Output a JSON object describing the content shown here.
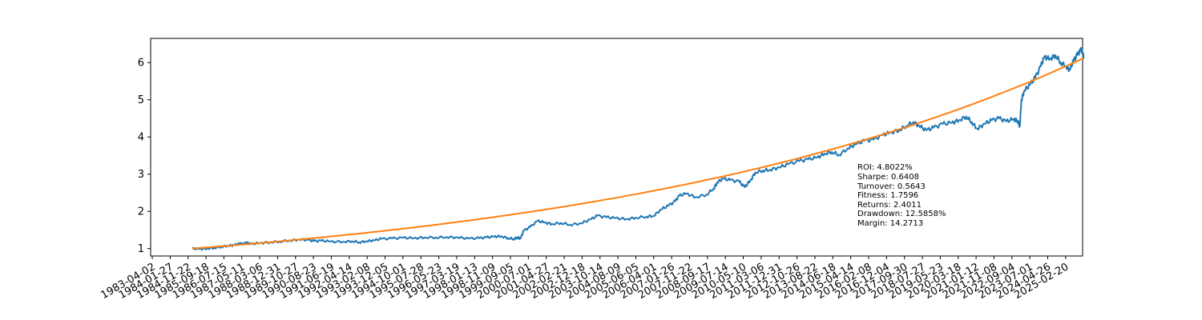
{
  "chart_data": {
    "type": "line",
    "title": "",
    "xlabel": "",
    "ylabel": "",
    "grid": false,
    "xlim": [
      "1983-04-02",
      "2025-12-01"
    ],
    "ylim": [
      0.8,
      6.65
    ],
    "yticks": [
      1,
      2,
      3,
      4,
      5,
      6
    ],
    "xticks": [
      "1983-04-02",
      "1984-01-27",
      "1984-11-22",
      "1985-09-18",
      "1986-07-15",
      "1987-05-11",
      "1988-03-06",
      "1988-12-31",
      "1989-10-27",
      "1990-08-23",
      "1991-06-19",
      "1992-04-14",
      "1993-02-08",
      "1993-12-05",
      "1994-10-01",
      "1995-07-28",
      "1996-05-23",
      "1997-03-19",
      "1998-01-13",
      "1998-11-09",
      "1999-09-05",
      "2000-07-01",
      "2001-04-27",
      "2002-02-21",
      "2002-12-18",
      "2003-10-14",
      "2004-08-09",
      "2005-06-05",
      "2006-04-01",
      "2007-01-26",
      "2007-11-22",
      "2008-09-17",
      "2009-07-14",
      "2010-05-10",
      "2011-03-06",
      "2011-12-31",
      "2012-10-26",
      "2013-08-22",
      "2014-06-18",
      "2015-04-14",
      "2016-02-08",
      "2016-12-04",
      "2017-09-30",
      "2018-07-27",
      "2019-05-23",
      "2020-03-18",
      "2021-01-12",
      "2021-11-08",
      "2022-09-04",
      "2023-07-01",
      "2024-04-26",
      "2025-02-20"
    ],
    "series": [
      {
        "color": "#1f77b4",
        "points": [
          [
            "1985-02-01",
            1.0
          ],
          [
            "1985-06-01",
            0.99
          ],
          [
            "1985-10-01",
            1.0
          ],
          [
            "1986-02-01",
            1.02
          ],
          [
            "1986-06-01",
            1.05
          ],
          [
            "1986-10-01",
            1.08
          ],
          [
            "1987-01-01",
            1.09
          ],
          [
            "1987-04-01",
            1.13
          ],
          [
            "1987-08-01",
            1.15
          ],
          [
            "1987-10-20",
            1.12
          ],
          [
            "1988-03-01",
            1.15
          ],
          [
            "1988-09-01",
            1.17
          ],
          [
            "1989-02-01",
            1.19
          ],
          [
            "1989-08-01",
            1.22
          ],
          [
            "1990-01-01",
            1.24
          ],
          [
            "1990-06-01",
            1.23
          ],
          [
            "1990-09-01",
            1.2
          ],
          [
            "1991-01-01",
            1.21
          ],
          [
            "1991-06-01",
            1.19
          ],
          [
            "1992-01-01",
            1.18
          ],
          [
            "1992-06-01",
            1.2
          ],
          [
            "1992-10-01",
            1.17
          ],
          [
            "1993-02-01",
            1.2
          ],
          [
            "1993-06-01",
            1.22
          ],
          [
            "1993-10-01",
            1.26
          ],
          [
            "1994-04-01",
            1.27
          ],
          [
            "1994-10-01",
            1.29
          ],
          [
            "1995-04-01",
            1.28
          ],
          [
            "1995-10-01",
            1.3
          ],
          [
            "1996-04-01",
            1.3
          ],
          [
            "1996-10-01",
            1.31
          ],
          [
            "1997-04-01",
            1.3
          ],
          [
            "1997-10-01",
            1.27
          ],
          [
            "1998-04-01",
            1.28
          ],
          [
            "1998-08-01",
            1.3
          ],
          [
            "1998-12-01",
            1.32
          ],
          [
            "1999-04-01",
            1.33
          ],
          [
            "1999-08-01",
            1.28
          ],
          [
            "1999-11-01",
            1.26
          ],
          [
            "2000-01-01",
            1.3
          ],
          [
            "2000-02-20",
            1.27
          ],
          [
            "2000-04-15",
            1.48
          ],
          [
            "2000-08-01",
            1.58
          ],
          [
            "2000-12-01",
            1.74
          ],
          [
            "2001-04-01",
            1.7
          ],
          [
            "2001-08-01",
            1.66
          ],
          [
            "2002-01-01",
            1.69
          ],
          [
            "2002-06-01",
            1.64
          ],
          [
            "2002-12-01",
            1.68
          ],
          [
            "2003-05-01",
            1.78
          ],
          [
            "2003-09-01",
            1.88
          ],
          [
            "2004-02-01",
            1.84
          ],
          [
            "2004-07-01",
            1.82
          ],
          [
            "2005-01-01",
            1.79
          ],
          [
            "2005-06-01",
            1.83
          ],
          [
            "2005-12-01",
            1.86
          ],
          [
            "2006-04-01",
            1.88
          ],
          [
            "2006-08-01",
            2.05
          ],
          [
            "2006-12-01",
            2.15
          ],
          [
            "2007-04-01",
            2.28
          ],
          [
            "2007-06-01",
            2.42
          ],
          [
            "2007-10-01",
            2.48
          ],
          [
            "2008-03-01",
            2.38
          ],
          [
            "2008-09-01",
            2.45
          ],
          [
            "2009-01-01",
            2.62
          ],
          [
            "2009-03-01",
            2.78
          ],
          [
            "2009-06-01",
            2.88
          ],
          [
            "2009-10-01",
            2.84
          ],
          [
            "2010-03-01",
            2.8
          ],
          [
            "2010-06-01",
            2.65
          ],
          [
            "2010-09-01",
            2.82
          ],
          [
            "2010-12-01",
            3.05
          ],
          [
            "2011-04-01",
            3.1
          ],
          [
            "2011-08-01",
            3.12
          ],
          [
            "2012-01-01",
            3.18
          ],
          [
            "2012-06-01",
            3.27
          ],
          [
            "2012-12-01",
            3.35
          ],
          [
            "2013-05-01",
            3.4
          ],
          [
            "2013-10-01",
            3.45
          ],
          [
            "2014-02-01",
            3.55
          ],
          [
            "2014-06-01",
            3.6
          ],
          [
            "2014-10-01",
            3.52
          ],
          [
            "2015-03-01",
            3.7
          ],
          [
            "2015-07-01",
            3.8
          ],
          [
            "2015-12-01",
            3.9
          ],
          [
            "2016-05-01",
            3.93
          ],
          [
            "2016-10-01",
            4.05
          ],
          [
            "2017-02-01",
            4.12
          ],
          [
            "2017-07-01",
            4.18
          ],
          [
            "2017-11-01",
            4.3
          ],
          [
            "2018-03-01",
            4.4
          ],
          [
            "2018-06-01",
            4.3
          ],
          [
            "2018-10-01",
            4.18
          ],
          [
            "2019-02-01",
            4.25
          ],
          [
            "2019-07-01",
            4.35
          ],
          [
            "2019-12-01",
            4.38
          ],
          [
            "2020-04-01",
            4.45
          ],
          [
            "2020-08-01",
            4.55
          ],
          [
            "2020-11-01",
            4.4
          ],
          [
            "2021-02-01",
            4.22
          ],
          [
            "2021-06-01",
            4.35
          ],
          [
            "2021-10-01",
            4.45
          ],
          [
            "2022-02-01",
            4.5
          ],
          [
            "2022-06-01",
            4.42
          ],
          [
            "2022-10-01",
            4.48
          ],
          [
            "2022-12-01",
            4.45
          ],
          [
            "2023-01-15",
            4.3
          ],
          [
            "2023-02-10",
            5.0
          ],
          [
            "2023-04-01",
            5.25
          ],
          [
            "2023-07-01",
            5.4
          ],
          [
            "2023-10-01",
            5.6
          ],
          [
            "2024-01-01",
            5.9
          ],
          [
            "2024-03-01",
            6.15
          ],
          [
            "2024-06-01",
            6.1
          ],
          [
            "2024-09-01",
            6.2
          ],
          [
            "2024-12-01",
            6.0
          ],
          [
            "2025-03-01",
            5.9
          ],
          [
            "2025-05-01",
            5.8
          ],
          [
            "2025-07-01",
            6.05
          ],
          [
            "2025-09-01",
            6.2
          ],
          [
            "2025-11-01",
            6.35
          ],
          [
            "2025-12-01",
            6.25
          ],
          [
            "2025-12-20",
            6.15
          ]
        ]
      },
      {
        "color": "#ff7f0e",
        "curve": "exponential",
        "start": [
          "1985-02-01",
          1.0
        ],
        "end": [
          "2025-12-20",
          6.12
        ]
      }
    ]
  },
  "stats": {
    "roi": "ROI: 4.8022%",
    "sharpe": "Sharpe: 0.6408",
    "turnover": "Turnover: 0.5643",
    "fitness": "Fitness: 1.7596",
    "returns": "Returns: 2.4011",
    "drawdown": "Drawdown: 12.5858%",
    "margin": "Margin: 14.2713"
  }
}
